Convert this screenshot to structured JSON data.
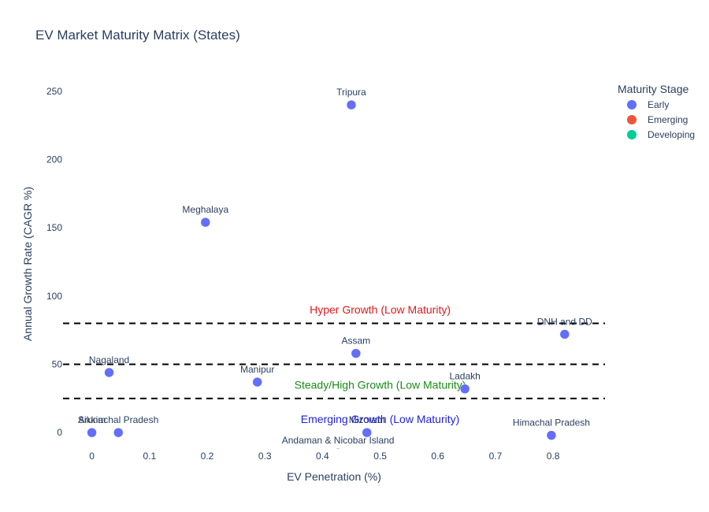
{
  "chart_data": {
    "type": "scatter",
    "title": "EV Market Maturity Matrix (States)",
    "xlabel": "EV Penetration (%)",
    "ylabel": "Annual Growth Rate (CAGR %)",
    "xlim": [
      -0.05,
      0.89
    ],
    "ylim": [
      -12,
      262
    ],
    "x_ticks": [
      0,
      0.1,
      0.2,
      0.3,
      0.4,
      0.5,
      0.6,
      0.7,
      0.8
    ],
    "x_tick_labels": [
      "0",
      "0.1",
      "0.2",
      "0.3",
      "0.4",
      "0.5",
      "0.6",
      "0.7",
      "0.8"
    ],
    "y_ticks": [
      0,
      50,
      100,
      150,
      200,
      250
    ],
    "y_tick_labels": [
      "0",
      "50",
      "100",
      "150",
      "200",
      "250"
    ],
    "grid": false,
    "legend": {
      "title": "Maturity Stage",
      "position": "top-right",
      "items": [
        {
          "name": "Early",
          "color": "#636efa"
        },
        {
          "name": "Emerging",
          "color": "#ef553b"
        },
        {
          "name": "Developing",
          "color": "#00cc96"
        }
      ]
    },
    "series": [
      {
        "name": "Early",
        "color": "#636efa",
        "points": [
          {
            "label": "Tripura",
            "x": 0.45,
            "y": 240
          },
          {
            "label": "Meghalaya",
            "x": 0.197,
            "y": 154
          },
          {
            "label": "DNH and DD",
            "x": 0.82,
            "y": 72
          },
          {
            "label": "Assam",
            "x": 0.458,
            "y": 58
          },
          {
            "label": "Nagaland",
            "x": 0.03,
            "y": 44
          },
          {
            "label": "Manipur",
            "x": 0.287,
            "y": 37
          },
          {
            "label": "Ladakh",
            "x": 0.647,
            "y": 32
          },
          {
            "label": "Sikkim",
            "x": 0.0,
            "y": 0
          },
          {
            "label": "Arunachal Pradesh",
            "x": 0.046,
            "y": 0
          },
          {
            "label": "Mizoram",
            "x": 0.477,
            "y": 0
          },
          {
            "label": "Himachal Pradesh",
            "x": 0.797,
            "y": -2
          },
          {
            "label": "Andaman & Nicobar Island",
            "x": 0.427,
            "y": -15
          }
        ]
      }
    ],
    "reference_lines": [
      80,
      50,
      25
    ],
    "annotations": [
      {
        "text": "Hyper Growth (Low Maturity)",
        "x": 0.5,
        "y": 90,
        "color": "#e31a1c"
      },
      {
        "text": "Steady/High Growth (Low Maturity)",
        "x": 0.5,
        "y": 35,
        "color": "#1a8c1a"
      },
      {
        "text": "Emerging Growth (Low Maturity)",
        "x": 0.5,
        "y": 10,
        "color": "#1f1fe0"
      }
    ]
  }
}
